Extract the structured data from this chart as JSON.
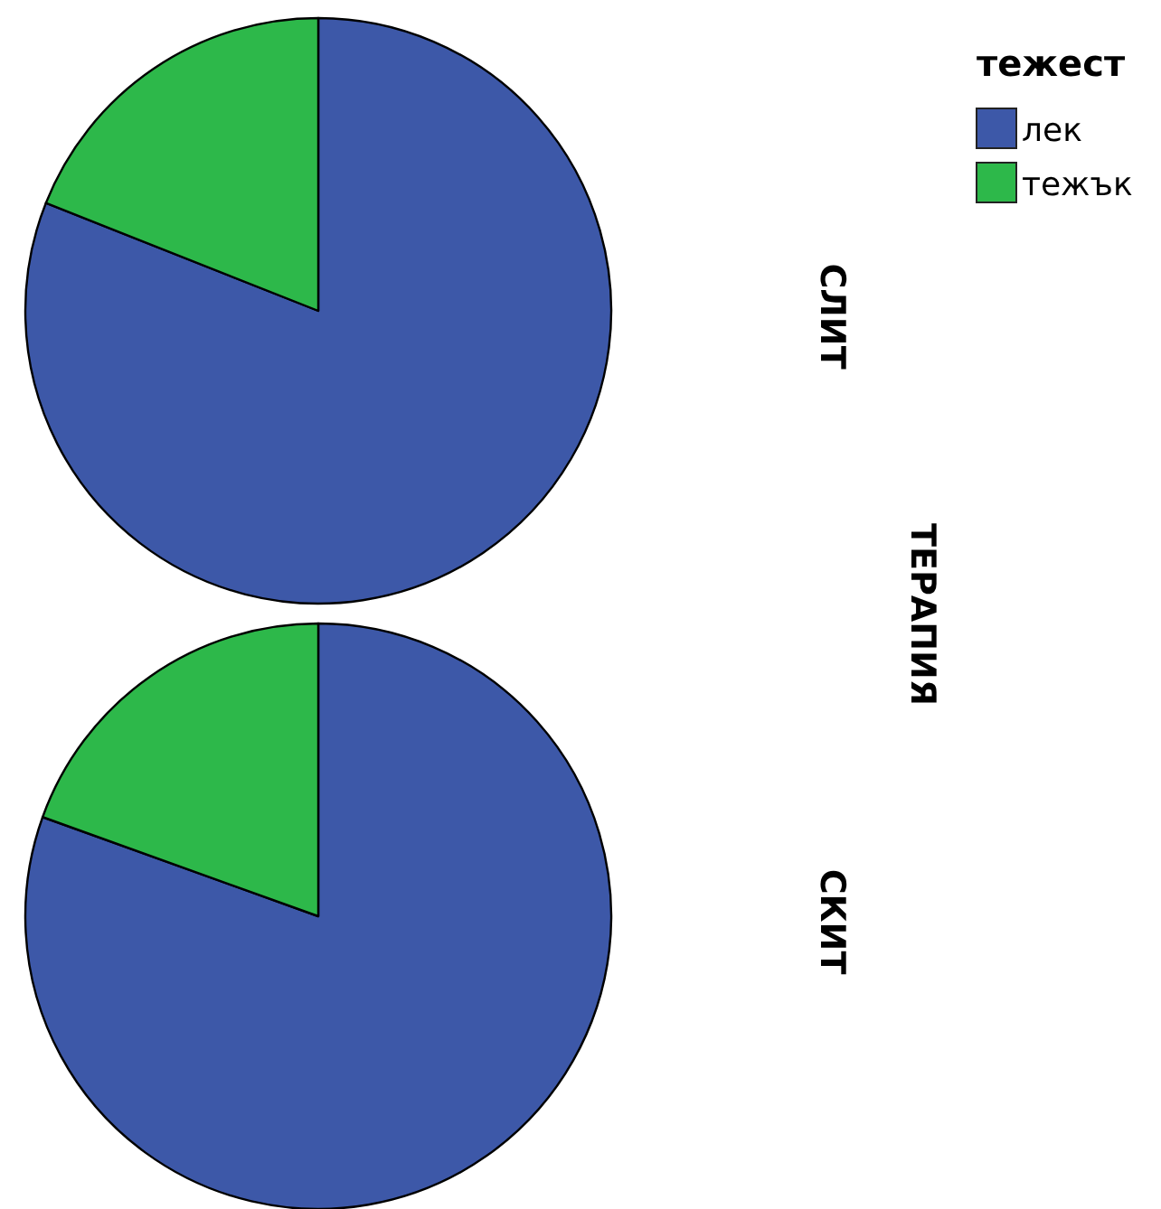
{
  "chart_data": [
    {
      "type": "pie",
      "title": "СЛИТ",
      "categories": [
        "лек",
        "тежък"
      ],
      "values": [
        81,
        19
      ],
      "colors": [
        "#3d58a8",
        "#2db84a"
      ],
      "legend": "top right",
      "legend_title": "тежест",
      "annotations": [
        "ТЕРАПИЯ"
      ]
    },
    {
      "type": "pie",
      "title": "СКИТ",
      "values": [
        80.5,
        19.5
      ],
      "colors": [
        "#3d58a8",
        "#2db84a"
      ]
    }
  ]
}
